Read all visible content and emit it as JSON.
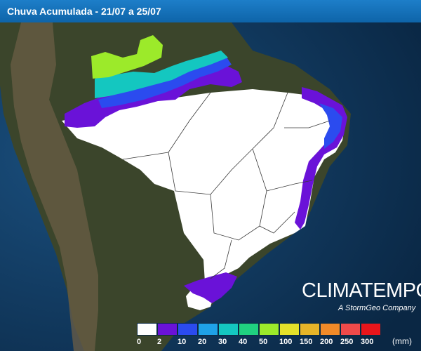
{
  "header": {
    "title": "Chuva Acumulada - 21/07 a 25/07"
  },
  "branding": {
    "name": "CLIMATEMPO",
    "tagline": "A StormGeo Company"
  },
  "legend": {
    "unit": "(mm)",
    "colors": [
      "#ffffff",
      "#6a12d8",
      "#2b4bef",
      "#1fa2e8",
      "#14c7c0",
      "#20d180",
      "#9cea2a",
      "#e4e12a",
      "#e6b428",
      "#f08a28",
      "#ef4a4a",
      "#e8151b"
    ],
    "labels": [
      "0",
      "2",
      "10",
      "20",
      "30",
      "40",
      "50",
      "100",
      "150",
      "200",
      "250",
      "300"
    ]
  },
  "palette": {
    "ocean": "#123d66",
    "land": "#3f4a2e",
    "dry": "#ffffff"
  }
}
